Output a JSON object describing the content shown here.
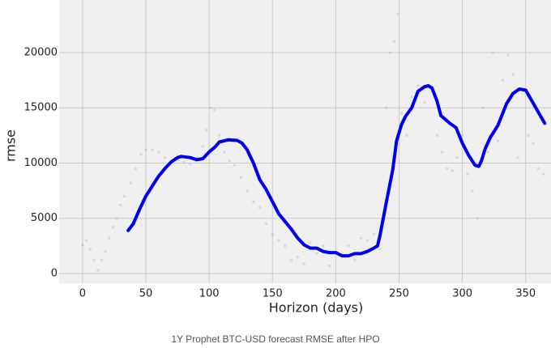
{
  "chart_data": {
    "type": "line",
    "caption": "1Y Prophet BTC-USD forecast RMSE after HPO",
    "x_label": "Horizon (days)",
    "y_label": "rmse",
    "xlim": [
      -18.5,
      370
    ],
    "ylim": [
      -880,
      24760
    ],
    "xticks": [
      0,
      50,
      100,
      150,
      200,
      250,
      300,
      350
    ],
    "yticks": [
      0,
      5000,
      10000,
      15000,
      20000
    ],
    "grid": true,
    "points": {
      "color": "#999999",
      "x": [
        0,
        3,
        6,
        9,
        12,
        15,
        18,
        21,
        24,
        27,
        30,
        33,
        38,
        42,
        46,
        50,
        55,
        60,
        65,
        70,
        75,
        80,
        85,
        90,
        95,
        98,
        101,
        104,
        108,
        112,
        116,
        120,
        125,
        130,
        135,
        140,
        145,
        150,
        155,
        160,
        165,
        170,
        175,
        180,
        185,
        190,
        195,
        200,
        205,
        210,
        215,
        220,
        225,
        230,
        235,
        240,
        243,
        246,
        249,
        252,
        256,
        260,
        265,
        270,
        275,
        280,
        284,
        288,
        292,
        296,
        300,
        304,
        308,
        312,
        316,
        320,
        324,
        328,
        332,
        336,
        340,
        344,
        348,
        352,
        356,
        360,
        364
      ],
      "y": [
        2600,
        3000,
        2200,
        1200,
        300,
        1200,
        2000,
        3200,
        4200,
        5000,
        6200,
        7000,
        8200,
        9500,
        10800,
        11200,
        11200,
        11000,
        10500,
        10200,
        10300,
        10100,
        9900,
        10500,
        11500,
        13000,
        15000,
        14800,
        12500,
        11000,
        10200,
        9800,
        8700,
        7500,
        6500,
        6000,
        4500,
        3500,
        3000,
        2500,
        1200,
        1500,
        900,
        2800,
        1800,
        2500,
        700,
        1900,
        1600,
        2500,
        1200,
        3200,
        3000,
        3600,
        2200,
        15000,
        20000,
        21000,
        23500,
        14500,
        12500,
        16000,
        17000,
        15500,
        16800,
        12500,
        11000,
        9500,
        9300,
        10500,
        12500,
        9000,
        7500,
        5000,
        15000,
        11000,
        20000,
        12000,
        17500,
        19800,
        18000,
        10500,
        16500,
        12500,
        11800,
        9500,
        9000
      ]
    },
    "line": {
      "color": "#0000ee",
      "x": [
        36,
        40,
        45,
        50,
        55,
        60,
        65,
        70,
        75,
        78,
        85,
        90,
        95,
        100,
        105,
        108,
        115,
        122,
        126,
        130,
        135,
        140,
        145,
        150,
        155,
        160,
        165,
        170,
        175,
        180,
        185,
        190,
        195,
        200,
        205,
        210,
        215,
        220,
        225,
        230,
        233,
        235,
        240,
        245,
        248,
        252,
        255,
        260,
        265,
        270,
        273,
        276,
        280,
        283,
        290,
        295,
        300,
        305,
        310,
        313,
        315,
        318,
        322,
        328,
        335,
        340,
        345,
        350,
        355,
        360,
        365
      ],
      "y": [
        3900,
        4500,
        5800,
        7000,
        7900,
        8800,
        9500,
        10100,
        10500,
        10600,
        10500,
        10300,
        10400,
        11000,
        11500,
        11900,
        12100,
        12050,
        11800,
        11200,
        10000,
        8500,
        7600,
        6500,
        5400,
        4700,
        4000,
        3200,
        2600,
        2300,
        2300,
        2000,
        1900,
        1900,
        1600,
        1600,
        1800,
        1800,
        2000,
        2300,
        2500,
        3500,
        6500,
        9400,
        12000,
        13500,
        14200,
        15000,
        16500,
        16900,
        17000,
        16800,
        15600,
        14300,
        13600,
        13200,
        11800,
        10700,
        9800,
        9700,
        10200,
        11300,
        12300,
        13400,
        15400,
        16300,
        16700,
        16600,
        15600,
        14600,
        13600
      ]
    }
  }
}
